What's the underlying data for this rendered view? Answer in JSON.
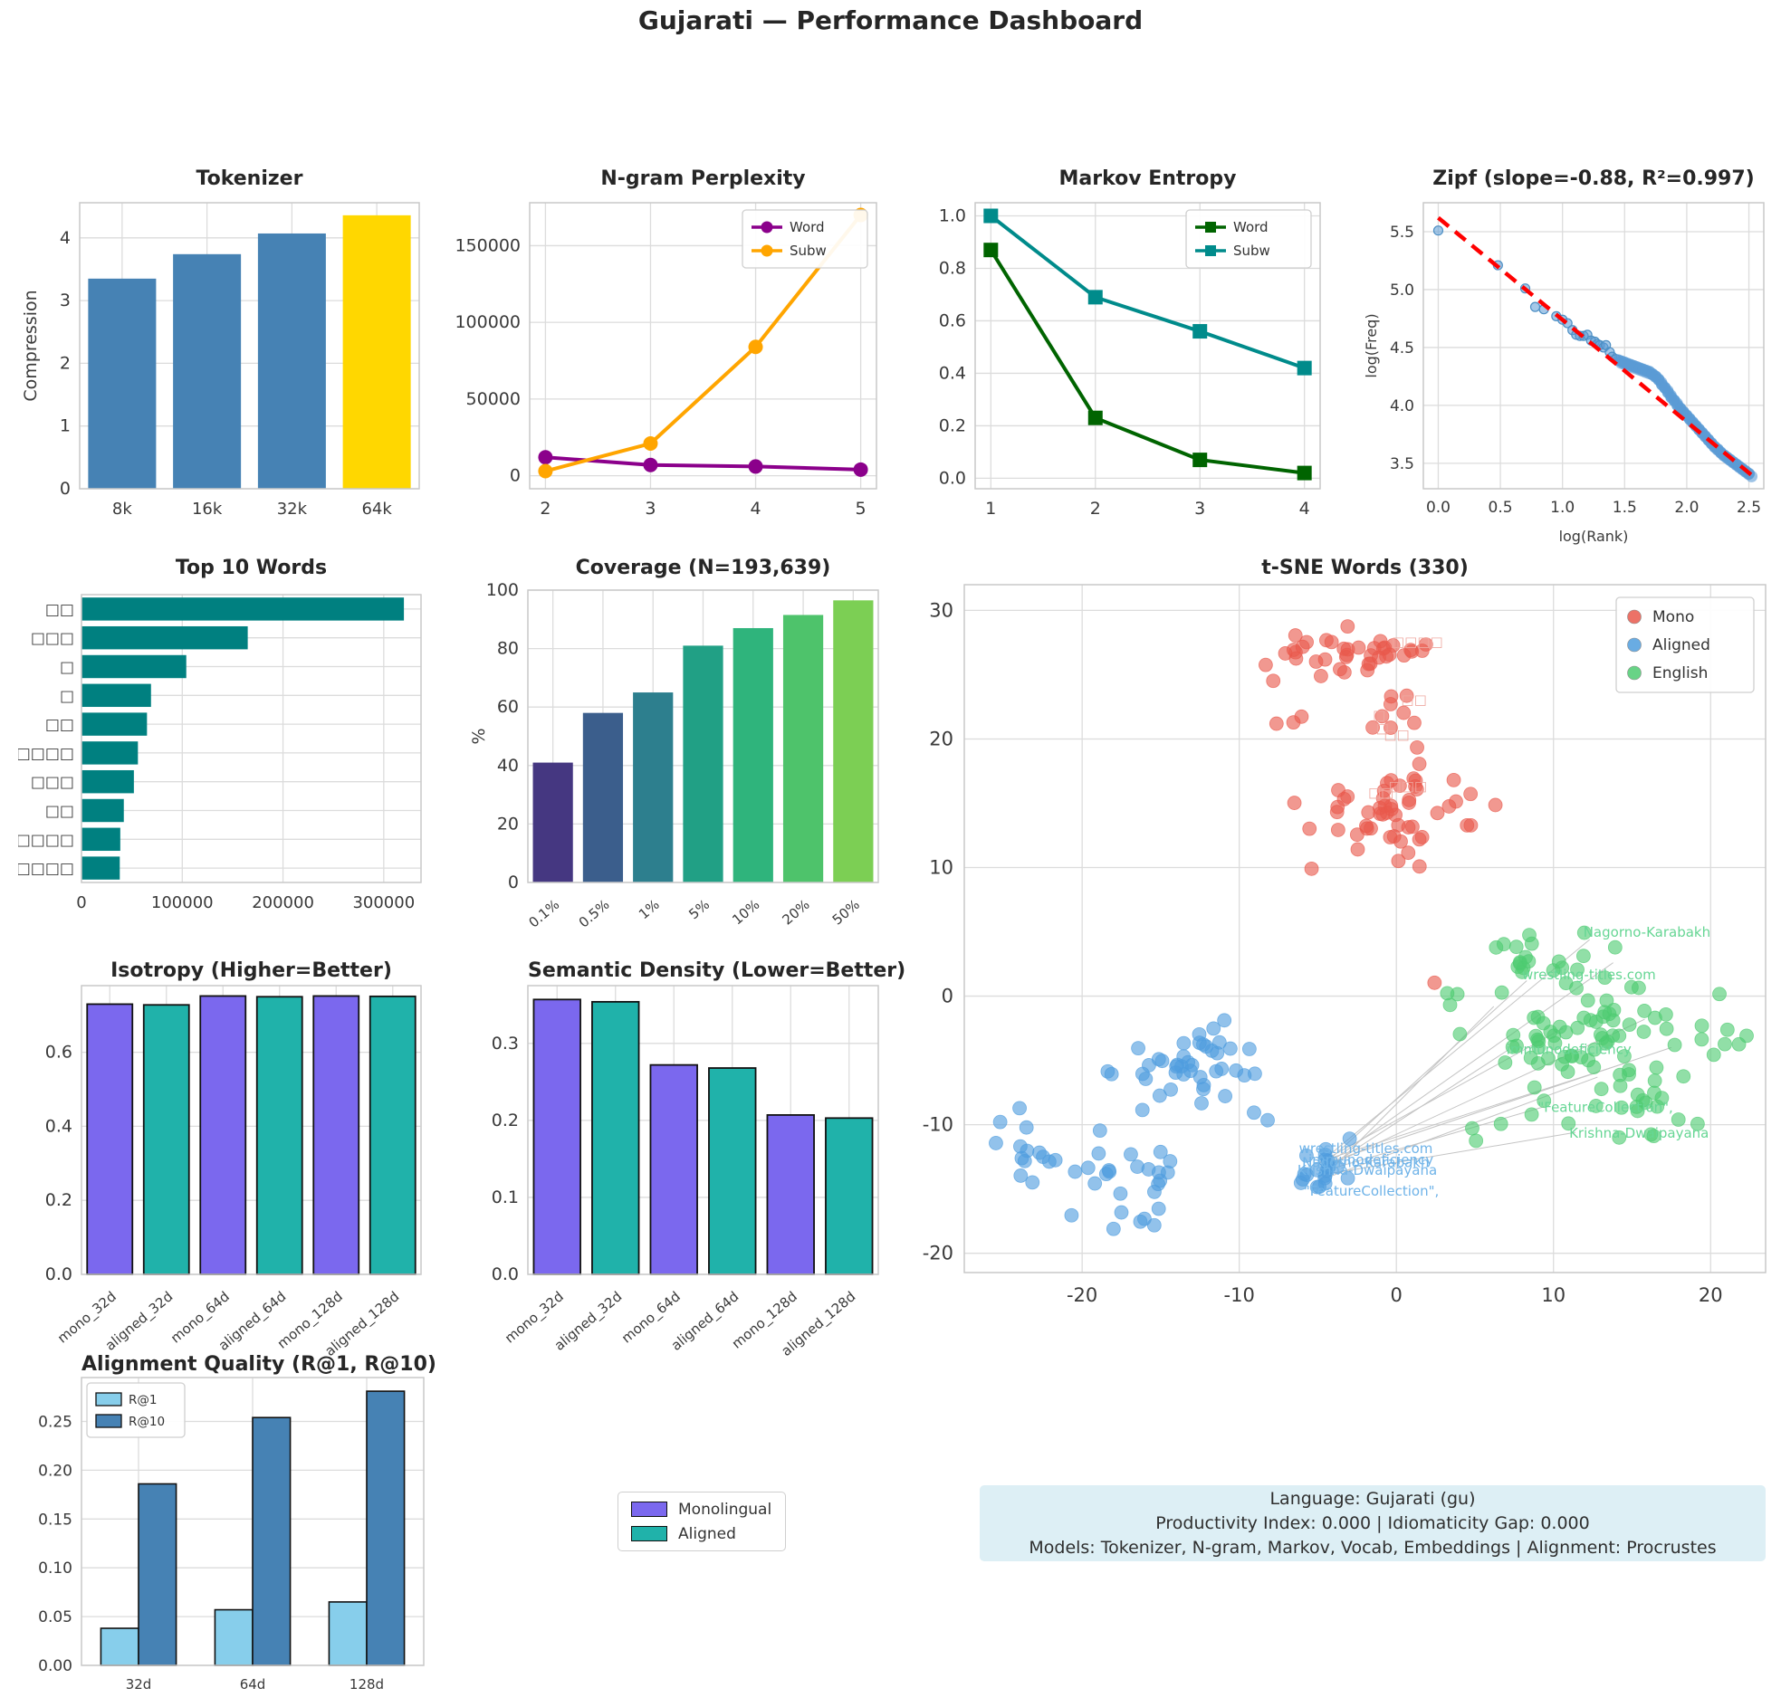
{
  "page_title": "Gujarati — Performance Dashboard",
  "chart_data": {
    "tokenizer": {
      "type": "bar",
      "title": "Tokenizer",
      "ylabel": "Compression",
      "categories": [
        "8k",
        "16k",
        "32k",
        "64k"
      ],
      "values": [
        3.35,
        3.74,
        4.07,
        4.36
      ],
      "bar_colors": [
        "#4682b4",
        "#4682b4",
        "#4682b4",
        "#ffd700"
      ],
      "yticks": [
        "0",
        "1",
        "2",
        "3",
        "4"
      ],
      "ytick_vals": [
        0,
        1,
        2,
        3,
        4
      ],
      "ylim": [
        0,
        4.56
      ]
    },
    "ngram_perplexity": {
      "type": "line",
      "title": "N-gram Perplexity",
      "x": [
        2,
        3,
        4,
        5
      ],
      "xlim": [
        1.85,
        5.15
      ],
      "ylim": [
        -8500,
        178000
      ],
      "yticks": [
        {
          "v": 0,
          "label": "0"
        },
        {
          "v": 50000,
          "label": "50000"
        },
        {
          "v": 100000,
          "label": "100000"
        },
        {
          "v": 150000,
          "label": "150000"
        }
      ],
      "series": [
        {
          "name": "Word",
          "color": "#8b008b",
          "marker": "circle",
          "values": [
            12000,
            7000,
            6000,
            4000
          ]
        },
        {
          "name": "Subw",
          "color": "#ffa500",
          "marker": "circle",
          "values": [
            3000,
            21000,
            84000,
            170000
          ]
        }
      ],
      "legend_position": "top-right"
    },
    "markov_entropy": {
      "type": "line",
      "title": "Markov Entropy",
      "x": [
        1,
        2,
        3,
        4
      ],
      "xlim": [
        0.85,
        4.15
      ],
      "ylim": [
        -0.04,
        1.05
      ],
      "yticks": [
        {
          "v": 0.0,
          "label": "0.0"
        },
        {
          "v": 0.2,
          "label": "0.2"
        },
        {
          "v": 0.4,
          "label": "0.4"
        },
        {
          "v": 0.6,
          "label": "0.6"
        },
        {
          "v": 0.8,
          "label": "0.8"
        },
        {
          "v": 1.0,
          "label": "1.0"
        }
      ],
      "series": [
        {
          "name": "Word",
          "color": "#006400",
          "marker": "square",
          "values": [
            0.87,
            0.23,
            0.07,
            0.02
          ]
        },
        {
          "name": "Subw",
          "color": "#008b8b",
          "marker": "square",
          "values": [
            1.0,
            0.69,
            0.56,
            0.42
          ]
        }
      ],
      "legend_position": "top-right"
    },
    "zipf": {
      "type": "scatter",
      "title": "Zipf (slope=-0.88, R²=0.997)",
      "xlabel": "log(Rank)",
      "ylabel": "log(Freq)",
      "xlim": [
        -0.12,
        2.62
      ],
      "ylim": [
        3.28,
        5.75
      ],
      "xticks": [
        {
          "v": 0.0,
          "label": "0.0"
        },
        {
          "v": 0.5,
          "label": "0.5"
        },
        {
          "v": 1.0,
          "label": "1.0"
        },
        {
          "v": 1.5,
          "label": "1.5"
        },
        {
          "v": 2.0,
          "label": "2.0"
        },
        {
          "v": 2.5,
          "label": "2.5"
        }
      ],
      "yticks": [
        {
          "v": 3.5,
          "label": "3.5"
        },
        {
          "v": 4.0,
          "label": "4.0"
        },
        {
          "v": 4.5,
          "label": "4.5"
        },
        {
          "v": 5.0,
          "label": "5.0"
        },
        {
          "v": 5.5,
          "label": "5.5"
        }
      ],
      "point_color": "#5b9bd5",
      "head_points": [
        [
          0.0,
          5.51
        ],
        [
          0.48,
          5.21
        ],
        [
          0.7,
          5.01
        ],
        [
          0.78,
          4.85
        ],
        [
          0.85,
          4.83
        ],
        [
          0.95,
          4.77
        ],
        [
          1.0,
          4.74
        ],
        [
          1.04,
          4.71
        ],
        [
          1.08,
          4.65
        ],
        [
          1.11,
          4.61
        ],
        [
          1.14,
          4.6
        ],
        [
          1.17,
          4.6
        ],
        [
          1.2,
          4.61
        ],
        [
          1.23,
          4.56
        ],
        [
          1.26,
          4.55
        ],
        [
          1.28,
          4.53
        ],
        [
          1.3,
          4.52
        ],
        [
          1.33,
          4.5
        ],
        [
          1.35,
          4.52
        ],
        [
          1.38,
          4.46
        ],
        [
          1.4,
          4.42
        ],
        [
          1.43,
          4.4
        ]
      ],
      "dense_points": [
        [
          1.45,
          4.39
        ],
        [
          1.475,
          4.38
        ],
        [
          1.5,
          4.37
        ],
        [
          1.525,
          4.36
        ],
        [
          1.55,
          4.35
        ],
        [
          1.575,
          4.34
        ],
        [
          1.6,
          4.33
        ],
        [
          1.625,
          4.32
        ],
        [
          1.65,
          4.31
        ],
        [
          1.675,
          4.3
        ],
        [
          1.7,
          4.29
        ],
        [
          1.725,
          4.27
        ],
        [
          1.75,
          4.25
        ],
        [
          1.775,
          4.22
        ],
        [
          1.8,
          4.18
        ],
        [
          1.825,
          4.15
        ],
        [
          1.85,
          4.11
        ],
        [
          1.875,
          4.07
        ],
        [
          1.9,
          4.04
        ],
        [
          1.925,
          4.0
        ],
        [
          1.95,
          3.97
        ],
        [
          1.975,
          3.94
        ],
        [
          2.0,
          3.91
        ],
        [
          2.025,
          3.88
        ],
        [
          2.05,
          3.85
        ],
        [
          2.075,
          3.82
        ],
        [
          2.1,
          3.79
        ],
        [
          2.125,
          3.76
        ],
        [
          2.15,
          3.73
        ],
        [
          2.175,
          3.7
        ],
        [
          2.2,
          3.67
        ],
        [
          2.225,
          3.64
        ],
        [
          2.25,
          3.62
        ],
        [
          2.275,
          3.59
        ],
        [
          2.3,
          3.57
        ],
        [
          2.325,
          3.55
        ],
        [
          2.35,
          3.53
        ],
        [
          2.375,
          3.51
        ],
        [
          2.4,
          3.49
        ],
        [
          2.425,
          3.47
        ],
        [
          2.45,
          3.45
        ],
        [
          2.475,
          3.43
        ],
        [
          2.5,
          3.41
        ]
      ],
      "fit_line": {
        "x1": 0.0,
        "y1": 5.62,
        "x2": 2.52,
        "y2": 3.4,
        "color": "#ff0000"
      }
    },
    "top_words": {
      "type": "barh",
      "title": "Top 10 Words",
      "labels": [
        "□□",
        "□□□",
        "□",
        "□",
        "□□",
        "□□□□□",
        "□□□",
        "□□",
        "□□□□□□",
        "□□□□"
      ],
      "values": [
        320000,
        165000,
        104000,
        69000,
        65000,
        56000,
        52000,
        42000,
        38500,
        38000
      ],
      "bar_color": "#008080",
      "xticks": [
        {
          "v": 0,
          "label": "0"
        },
        {
          "v": 100000,
          "label": "100000"
        },
        {
          "v": 200000,
          "label": "200000"
        },
        {
          "v": 300000,
          "label": "300000"
        }
      ],
      "xlim": [
        0,
        337000
      ]
    },
    "coverage": {
      "type": "bar",
      "title": "Coverage (N=193,639)",
      "ylabel": "%",
      "categories": [
        "0.1%",
        "0.5%",
        "1%",
        "5%",
        "10%",
        "20%",
        "50%"
      ],
      "values": [
        41,
        58,
        65,
        81,
        87,
        91.5,
        96.5
      ],
      "bar_colors": [
        "#453781",
        "#3b5e8c",
        "#2d7f8e",
        "#21a085",
        "#2fb47c",
        "#4ec36b",
        "#7ccf54"
      ],
      "yticks": [
        "0",
        "20",
        "40",
        "60",
        "80",
        "100"
      ],
      "ytick_vals": [
        0,
        20,
        40,
        60,
        80,
        100
      ],
      "ylim": [
        0,
        100
      ],
      "rotate_xlabels": true
    },
    "tsne": {
      "type": "scatter",
      "title": "t-SNE Words (330)",
      "xticks": [
        -20,
        -10,
        0,
        10,
        20
      ],
      "yticks": [
        -20,
        -10,
        0,
        10,
        20,
        30
      ],
      "xlim": [
        -27.5,
        23.5
      ],
      "ylim": [
        -21.5,
        32
      ],
      "legend": [
        {
          "label": "Mono",
          "color": "#e9594c"
        },
        {
          "label": "Aligned",
          "color": "#4f9dde"
        },
        {
          "label": "English",
          "color": "#4ecb71"
        }
      ],
      "clusters": [
        {
          "name": "Mono",
          "color": "#e9594c",
          "groups": [
            {
              "cx": -4.5,
              "cy": 26.3,
              "sx": 2.9,
              "sy": 1.0,
              "n": 30
            },
            {
              "cx": 0.6,
              "cy": 27.2,
              "sx": 1.4,
              "sy": 0.8,
              "n": 9
            },
            {
              "cx": -0.4,
              "cy": 21.6,
              "sx": 1.3,
              "sy": 1.0,
              "n": 9
            },
            {
              "cx": -6.6,
              "cy": 21.9,
              "sx": 0.7,
              "sy": 0.7,
              "n": 3
            },
            {
              "cx": 0.0,
              "cy": 14.6,
              "sx": 2.7,
              "sy": 1.7,
              "n": 52
            },
            {
              "cx": 4.8,
              "cy": 13.2,
              "sx": 0.4,
              "sy": 0.3,
              "n": 2
            },
            {
              "cx": 2.5,
              "cy": 1.0,
              "sx": 0.05,
              "sy": 0.05,
              "n": 1
            }
          ]
        },
        {
          "name": "Aligned",
          "color": "#4f9dde",
          "groups": [
            {
              "cx": -13.0,
              "cy": -5.6,
              "sx": 2.3,
              "sy": 1.7,
              "n": 42
            },
            {
              "cx": -23.2,
              "cy": -11.6,
              "sx": 1.2,
              "sy": 1.4,
              "n": 13
            },
            {
              "cx": -17.6,
              "cy": -13.6,
              "sx": 1.7,
              "sy": 1.4,
              "n": 20
            },
            {
              "cx": -16.2,
              "cy": -17.2,
              "sx": 0.9,
              "sy": 0.8,
              "n": 7
            },
            {
              "cx": -4.6,
              "cy": -13.6,
              "sx": 0.8,
              "sy": 1.0,
              "n": 20
            },
            {
              "cx": -8.8,
              "cy": -9.4,
              "sx": 0.3,
              "sy": 0.3,
              "n": 2
            }
          ]
        },
        {
          "name": "English",
          "color": "#4ecb71",
          "groups": [
            {
              "cx": 12.5,
              "cy": -3.8,
              "sx": 3.4,
              "sy": 2.5,
              "n": 80
            },
            {
              "cx": 9.0,
              "cy": 2.6,
              "sx": 2.1,
              "sy": 1.3,
              "n": 13
            },
            {
              "cx": 16.5,
              "cy": -8.2,
              "sx": 2.3,
              "sy": 1.3,
              "n": 12
            },
            {
              "cx": 20.5,
              "cy": -3.0,
              "sx": 1.2,
              "sy": 1.4,
              "n": 7
            },
            {
              "cx": 5.6,
              "cy": -10.6,
              "sx": 0.7,
              "sy": 0.6,
              "n": 3
            },
            {
              "cx": 6.8,
              "cy": 3.9,
              "sx": 0.5,
              "sy": 0.5,
              "n": 2
            },
            {
              "cx": 12.3,
              "cy": 4.4,
              "sx": 0.3,
              "sy": 0.3,
              "n": 1
            },
            {
              "cx": 3.5,
              "cy": -0.5,
              "sx": 0.4,
              "sy": 0.4,
              "n": 2
            }
          ]
        }
      ],
      "annotations": [
        {
          "x": -0.3,
          "y": 27.2,
          "text": "□□□□",
          "color": "#efa9a1"
        },
        {
          "x": 0.3,
          "y": 22.7,
          "text": "□□",
          "color": "#efa9a1"
        },
        {
          "x": -1.5,
          "y": 21.5,
          "text": "□",
          "color": "#efa9a1"
        },
        {
          "x": -1.3,
          "y": 20.5,
          "text": "□",
          "color": "#efa9a1"
        },
        {
          "x": -0.8,
          "y": 20.0,
          "text": "□□",
          "color": "#efa9a1"
        },
        {
          "x": -0.5,
          "y": 16.0,
          "text": "□□□",
          "color": "#efa9a1"
        },
        {
          "x": -1.8,
          "y": 15.5,
          "text": "□□",
          "color": "#efa9a1"
        },
        {
          "x": -6.2,
          "y": -12.2,
          "text": "wrestling-titles.com",
          "color": "#6fb3e8"
        },
        {
          "x": -5.6,
          "y": -13.1,
          "text": "immunodeficiency",
          "color": "#6fb3e8"
        },
        {
          "x": -6.0,
          "y": -13.3,
          "text": "Nagorno-Karabakh",
          "color": "#6fb3e8"
        },
        {
          "x": -6.3,
          "y": -13.9,
          "text": "Krishna-Dwaipayana",
          "color": "#6fb3e8"
        },
        {
          "x": -5.9,
          "y": -15.5,
          "text": "\"FeatureCollection\",",
          "color": "#6fb3e8"
        },
        {
          "x": 11.9,
          "y": 4.6,
          "text": "Nagorno-Karabakh",
          "color": "#66d694"
        },
        {
          "x": 8.0,
          "y": 1.3,
          "text": "wrestling-titles.com",
          "color": "#66d694"
        },
        {
          "x": 7.0,
          "y": -4.5,
          "text": "immunodeficiency",
          "color": "#66d694"
        },
        {
          "x": 9.0,
          "y": -9.0,
          "text": "\"FeatureCollection\",",
          "color": "#66d694"
        },
        {
          "x": 11.0,
          "y": -11.0,
          "text": "Krishna-Dwaipayana",
          "color": "#66d694"
        }
      ],
      "connectors": [
        [
          -4.9,
          -13.0,
          12.3,
          4.4
        ],
        [
          -4.7,
          -13.2,
          8.3,
          1.2
        ],
        [
          -4.8,
          -13.4,
          13.8,
          2.6
        ],
        [
          -4.6,
          -13.5,
          7.1,
          -4.2
        ],
        [
          -4.9,
          -13.7,
          9.4,
          -8.6
        ],
        [
          -4.7,
          -13.9,
          11.4,
          -10.6
        ],
        [
          -4.5,
          -13.3,
          15.8,
          -1.8
        ],
        [
          -4.8,
          -12.9,
          10.6,
          -2.5
        ],
        [
          -4.6,
          -14.2,
          12.8,
          -6.3
        ],
        [
          -4.9,
          -14.4,
          6.2,
          -0.8
        ],
        [
          -4.5,
          -13.0,
          17.5,
          -4.0
        ],
        [
          -4.7,
          -12.8,
          14.6,
          -5.2
        ]
      ]
    },
    "isotropy": {
      "type": "bar",
      "title": "Isotropy (Higher=Better)",
      "categories": [
        "mono_32d",
        "aligned_32d",
        "mono_64d",
        "aligned_64d",
        "mono_128d",
        "aligned_128d"
      ],
      "values": [
        0.73,
        0.728,
        0.752,
        0.75,
        0.752,
        0.751
      ],
      "bar_colors": [
        "#7b68ee",
        "#20b2aa",
        "#7b68ee",
        "#20b2aa",
        "#7b68ee",
        "#20b2aa"
      ],
      "yticks": [
        "0.0",
        "0.2",
        "0.4",
        "0.6"
      ],
      "ytick_vals": [
        0.0,
        0.2,
        0.4,
        0.6
      ],
      "ylim": [
        0,
        0.78
      ],
      "edge_color": "#111111",
      "rotate_xlabels": true
    },
    "semantic_density": {
      "type": "bar",
      "title": "Semantic Density (Lower=Better)",
      "categories": [
        "mono_32d",
        "aligned_32d",
        "mono_64d",
        "aligned_64d",
        "mono_128d",
        "aligned_128d"
      ],
      "values": [
        0.357,
        0.354,
        0.272,
        0.268,
        0.207,
        0.203
      ],
      "bar_colors": [
        "#7b68ee",
        "#20b2aa",
        "#7b68ee",
        "#20b2aa",
        "#7b68ee",
        "#20b2aa"
      ],
      "yticks": [
        "0.0",
        "0.1",
        "0.2",
        "0.3"
      ],
      "ytick_vals": [
        0.0,
        0.1,
        0.2,
        0.3
      ],
      "ylim": [
        0,
        0.375
      ],
      "edge_color": "#111111",
      "rotate_xlabels": true
    },
    "alignment_quality": {
      "type": "grouped-bar",
      "title": "Alignment Quality (R@1, R@10)",
      "categories": [
        "32d",
        "64d",
        "128d"
      ],
      "series": [
        {
          "name": "R@1",
          "color": "#87ceeb",
          "values": [
            0.038,
            0.057,
            0.065
          ]
        },
        {
          "name": "R@10",
          "color": "#4682b4",
          "values": [
            0.186,
            0.254,
            0.281
          ]
        }
      ],
      "yticks": [
        {
          "v": 0.0,
          "label": "0.00"
        },
        {
          "v": 0.05,
          "label": "0.05"
        },
        {
          "v": 0.1,
          "label": "0.10"
        },
        {
          "v": 0.15,
          "label": "0.15"
        },
        {
          "v": 0.2,
          "label": "0.20"
        },
        {
          "v": 0.25,
          "label": "0.25"
        }
      ],
      "ylim": [
        0,
        0.295
      ],
      "edge_color": "#111111",
      "legend_position": "top-left"
    }
  },
  "legend_box": {
    "items": [
      {
        "label": "Monolingual",
        "color": "#7b68ee"
      },
      {
        "label": "Aligned",
        "color": "#20b2aa"
      }
    ]
  },
  "info_box": {
    "background": "#ddeff5",
    "lines": [
      "Language: Gujarati (gu)",
      "Productivity Index: 0.000  |  Idiomaticity Gap: 0.000",
      "Models: Tokenizer, N-gram, Markov, Vocab, Embeddings  |  Alignment: Procrustes"
    ]
  }
}
